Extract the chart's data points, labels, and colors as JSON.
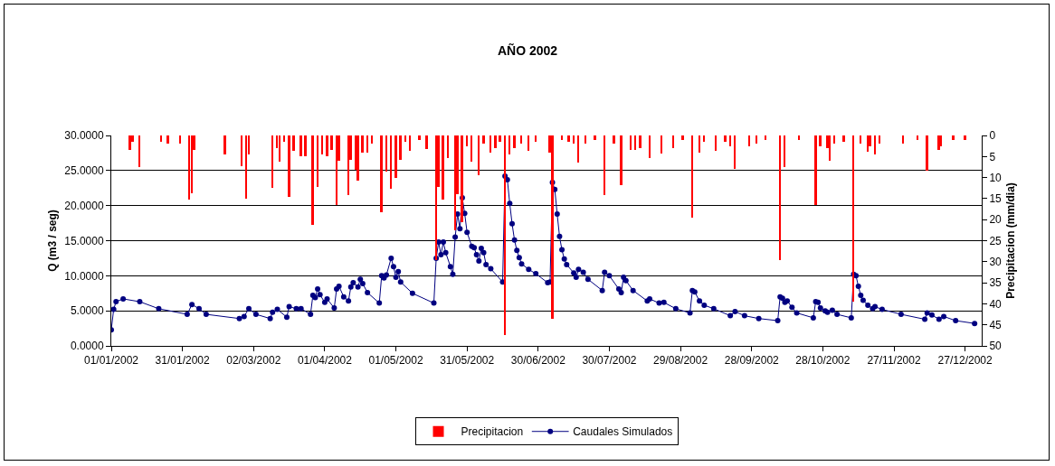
{
  "chart_data": {
    "type": "line",
    "title": "AÑO 2002",
    "ylabel": "Q (m3 / seg)",
    "y2label": "Precipitacion (mm/dia)",
    "xlim": [
      "2002-01-01",
      "2003-01-03"
    ],
    "xticks": [
      {
        "value": "2002-01-01",
        "label": "01/01/2002"
      },
      {
        "value": "2002-01-31",
        "label": "31/01/2002"
      },
      {
        "value": "2002-03-02",
        "label": "02/03/2002"
      },
      {
        "value": "2002-04-01",
        "label": "01/04/2002"
      },
      {
        "value": "2002-05-01",
        "label": "01/05/2002"
      },
      {
        "value": "2002-05-31",
        "label": "31/05/2002"
      },
      {
        "value": "2002-06-30",
        "label": "30/06/2002"
      },
      {
        "value": "2002-07-30",
        "label": "30/07/2002"
      },
      {
        "value": "2002-08-29",
        "label": "29/08/2002"
      },
      {
        "value": "2002-09-28",
        "label": "28/09/2002"
      },
      {
        "value": "2002-10-28",
        "label": "28/10/2002"
      },
      {
        "value": "2002-11-27",
        "label": "27/11/2002"
      },
      {
        "value": "2002-12-27",
        "label": "27/12/2002"
      }
    ],
    "ylim": [
      0,
      30
    ],
    "yticks": [
      {
        "value": 0,
        "label": "0.0000"
      },
      {
        "value": 5,
        "label": "5.0000"
      },
      {
        "value": 10,
        "label": "10.0000"
      },
      {
        "value": 15,
        "label": "15.0000"
      },
      {
        "value": 20,
        "label": "20.0000"
      },
      {
        "value": 25,
        "label": "25.0000"
      },
      {
        "value": 30,
        "label": "30.0000"
      }
    ],
    "y2lim": [
      50,
      0
    ],
    "y2ticks": [
      0,
      5,
      10,
      15,
      20,
      25,
      30,
      35,
      40,
      45,
      50
    ],
    "grid": "y",
    "legend": "bottom",
    "marker": "circle",
    "line_style": "solid",
    "series": [
      {
        "name": "Precipitacion",
        "type": "bar",
        "axis": "y2",
        "color": "#ff0000",
        "x": [
          "2002-01-09",
          "2002-01-10",
          "2002-01-13",
          "2002-01-22",
          "2002-01-25",
          "2002-01-30",
          "2002-02-03",
          "2002-02-04",
          "2002-02-05",
          "2002-02-18",
          "2002-02-25",
          "2002-02-27",
          "2002-02-28",
          "2002-03-10",
          "2002-03-12",
          "2002-03-13",
          "2002-03-15",
          "2002-03-17",
          "2002-03-19",
          "2002-03-22",
          "2002-03-24",
          "2002-03-27",
          "2002-03-29",
          "2002-03-31",
          "2002-04-02",
          "2002-04-04",
          "2002-04-06",
          "2002-04-07",
          "2002-04-11",
          "2002-04-12",
          "2002-04-14",
          "2002-04-15",
          "2002-04-17",
          "2002-04-19",
          "2002-04-21",
          "2002-04-25",
          "2002-04-27",
          "2002-04-29",
          "2002-05-01",
          "2002-05-03",
          "2002-05-05",
          "2002-05-07",
          "2002-05-11",
          "2002-05-14",
          "2002-05-18",
          "2002-05-19",
          "2002-05-21",
          "2002-05-23",
          "2002-05-26",
          "2002-05-27",
          "2002-05-29",
          "2002-05-31",
          "2002-06-02",
          "2002-06-05",
          "2002-06-07",
          "2002-06-10",
          "2002-06-12",
          "2002-06-14",
          "2002-06-16",
          "2002-06-18",
          "2002-06-20",
          "2002-06-23",
          "2002-06-26",
          "2002-06-29",
          "2002-07-05",
          "2002-07-06",
          "2002-07-10",
          "2002-07-13",
          "2002-07-15",
          "2002-07-17",
          "2002-07-20",
          "2002-07-24",
          "2002-07-28",
          "2002-08-01",
          "2002-08-04",
          "2002-08-08",
          "2002-08-10",
          "2002-08-12",
          "2002-08-16",
          "2002-08-21",
          "2002-08-26",
          "2002-08-30",
          "2002-09-03",
          "2002-09-06",
          "2002-09-08",
          "2002-09-13",
          "2002-09-17",
          "2002-09-19",
          "2002-09-21",
          "2002-09-27",
          "2002-09-30",
          "2002-10-04",
          "2002-10-10",
          "2002-10-12",
          "2002-10-18",
          "2002-10-25",
          "2002-10-27",
          "2002-10-30",
          "2002-10-31",
          "2002-11-02",
          "2002-11-06",
          "2002-11-10",
          "2002-11-13",
          "2002-11-16",
          "2002-11-17",
          "2002-11-19",
          "2002-11-21",
          "2002-12-01",
          "2002-12-07",
          "2002-12-11",
          "2002-12-16",
          "2002-12-17",
          "2002-12-22",
          "2002-12-27"
        ],
        "values": [
          3.4,
          1.5,
          7.5,
          1.5,
          2,
          2,
          15.2,
          13.7,
          3.5,
          4.5,
          7.3,
          15,
          4.5,
          12.5,
          3,
          6.2,
          1.5,
          14.6,
          3.6,
          5,
          5,
          21.2,
          12.3,
          4.5,
          4.9,
          3.5,
          16.5,
          6,
          14.2,
          5.8,
          8.2,
          10.7,
          4,
          4,
          2,
          18.2,
          8.6,
          12.7,
          10,
          5.8,
          1.5,
          3.6,
          1,
          3.2,
          29.6,
          12.3,
          15.2,
          5.3,
          22.5,
          14,
          20.6,
          2.5,
          6.3,
          9.4,
          2,
          4,
          3,
          1.5,
          47.4,
          4.5,
          3,
          2,
          3.6,
          1.5,
          4,
          43.6,
          1,
          1.5,
          2,
          6.4,
          2,
          1,
          14.2,
          2,
          11.8,
          3.5,
          3.5,
          3,
          5.3,
          4.3,
          3,
          1,
          19.5,
          4,
          1.5,
          3.7,
          1.5,
          2.5,
          7.9,
          2.5,
          2,
          1,
          29.6,
          7.5,
          1,
          16.5,
          2.5,
          3,
          6,
          2,
          1.5,
          39.5,
          2,
          3.8,
          2.5,
          4.6,
          2,
          2,
          1,
          8.3,
          3.5,
          2.5,
          1,
          1
        ]
      },
      {
        "name": "Caudales Simulados",
        "color": "#000080",
        "x": [
          "2002-01-01",
          "2002-01-02",
          "2002-01-03",
          "2002-01-06",
          "2002-01-13",
          "2002-01-21",
          "2002-02-02",
          "2002-02-04",
          "2002-02-07",
          "2002-02-10",
          "2002-02-24",
          "2002-02-26",
          "2002-02-28",
          "2002-03-03",
          "2002-03-09",
          "2002-03-10",
          "2002-03-12",
          "2002-03-16",
          "2002-03-17",
          "2002-03-20",
          "2002-03-22",
          "2002-03-26",
          "2002-03-27",
          "2002-03-28",
          "2002-03-29",
          "2002-03-30",
          "2002-04-01",
          "2002-04-02",
          "2002-04-05",
          "2002-04-06",
          "2002-04-07",
          "2002-04-09",
          "2002-04-11",
          "2002-04-12",
          "2002-04-13",
          "2002-04-15",
          "2002-04-16",
          "2002-04-17",
          "2002-04-19",
          "2002-04-24",
          "2002-04-25",
          "2002-04-26",
          "2002-04-27",
          "2002-04-29",
          "2002-04-30",
          "2002-05-01",
          "2002-05-02",
          "2002-05-03",
          "2002-05-08",
          "2002-05-17",
          "2002-05-18",
          "2002-05-19",
          "2002-05-20",
          "2002-05-21",
          "2002-05-22",
          "2002-05-24",
          "2002-05-25",
          "2002-05-26",
          "2002-05-27",
          "2002-05-28",
          "2002-05-29",
          "2002-05-30",
          "2002-05-31",
          "2002-06-02",
          "2002-06-03",
          "2002-06-04",
          "2002-06-05",
          "2002-06-06",
          "2002-06-07",
          "2002-06-08",
          "2002-06-10",
          "2002-06-15",
          "2002-06-16",
          "2002-06-17",
          "2002-06-18",
          "2002-06-19",
          "2002-06-20",
          "2002-06-21",
          "2002-06-22",
          "2002-06-23",
          "2002-06-26",
          "2002-06-29",
          "2002-07-04",
          "2002-07-05",
          "2002-07-06",
          "2002-07-07",
          "2002-07-08",
          "2002-07-09",
          "2002-07-10",
          "2002-07-11",
          "2002-07-12",
          "2002-07-15",
          "2002-07-16",
          "2002-07-17",
          "2002-07-19",
          "2002-07-21",
          "2002-07-27",
          "2002-07-28",
          "2002-07-30",
          "2002-08-03",
          "2002-08-04",
          "2002-08-05",
          "2002-08-06",
          "2002-08-09",
          "2002-08-15",
          "2002-08-16",
          "2002-08-20",
          "2002-08-22",
          "2002-08-27",
          "2002-09-02",
          "2002-09-03",
          "2002-09-04",
          "2002-09-06",
          "2002-09-08",
          "2002-09-12",
          "2002-09-19",
          "2002-09-21",
          "2002-09-25",
          "2002-10-01",
          "2002-10-09",
          "2002-10-10",
          "2002-10-11",
          "2002-10-12",
          "2002-10-13",
          "2002-10-15",
          "2002-10-17",
          "2002-10-24",
          "2002-10-25",
          "2002-10-26",
          "2002-10-27",
          "2002-10-29",
          "2002-10-30",
          "2002-11-01",
          "2002-11-03",
          "2002-11-09",
          "2002-11-10",
          "2002-11-11",
          "2002-11-12",
          "2002-11-13",
          "2002-11-14",
          "2002-11-16",
          "2002-11-18",
          "2002-11-19",
          "2002-11-22",
          "2002-11-30",
          "2002-12-10",
          "2002-12-11",
          "2002-12-13",
          "2002-12-16",
          "2002-12-18",
          "2002-12-23",
          "2002-12-31"
        ],
        "values": [
          2.3,
          5.2,
          6.3,
          6.7,
          6.3,
          5.3,
          4.5,
          5.9,
          5.3,
          4.5,
          3.9,
          4.2,
          5.3,
          4.5,
          3.9,
          4.8,
          5.2,
          4.1,
          5.6,
          5.3,
          5.3,
          4.5,
          7.2,
          6.9,
          8.1,
          7.3,
          6.2,
          6.7,
          5.4,
          8.1,
          8.5,
          7.0,
          6.4,
          8.4,
          9.0,
          8.4,
          9.5,
          8.9,
          7.6,
          6.1,
          10.0,
          9.7,
          10.1,
          12.5,
          11.3,
          9.8,
          10.6,
          9.1,
          7.5,
          6.1,
          12.5,
          14.8,
          13.0,
          14.8,
          13.3,
          11.3,
          10.2,
          15.5,
          18.8,
          16.7,
          21.1,
          18.9,
          16.2,
          14.2,
          14.0,
          13.0,
          12.1,
          13.9,
          13.3,
          11.6,
          11.0,
          9.1,
          24.2,
          23.7,
          20.3,
          17.4,
          15.1,
          13.6,
          12.6,
          11.7,
          10.9,
          10.3,
          9.0,
          9.1,
          23.3,
          22.3,
          18.8,
          15.6,
          13.7,
          12.4,
          11.6,
          10.4,
          9.8,
          10.9,
          10.5,
          9.5,
          7.9,
          10.5,
          10.0,
          8.1,
          7.6,
          9.8,
          9.3,
          7.9,
          6.4,
          6.7,
          6.1,
          6.2,
          5.3,
          4.7,
          7.9,
          7.7,
          6.4,
          5.8,
          5.3,
          4.3,
          4.9,
          4.3,
          3.9,
          3.6,
          7.0,
          6.8,
          6.2,
          6.4,
          5.5,
          4.7,
          4.0,
          6.3,
          6.2,
          5.4,
          5.0,
          4.8,
          5.1,
          4.5,
          4.0,
          10.2,
          10.0,
          8.5,
          7.2,
          6.5,
          5.8,
          5.3,
          5.6,
          5.2,
          4.5,
          3.8,
          4.7,
          4.4,
          3.8,
          4.2,
          3.6,
          3.2
        ]
      }
    ]
  }
}
